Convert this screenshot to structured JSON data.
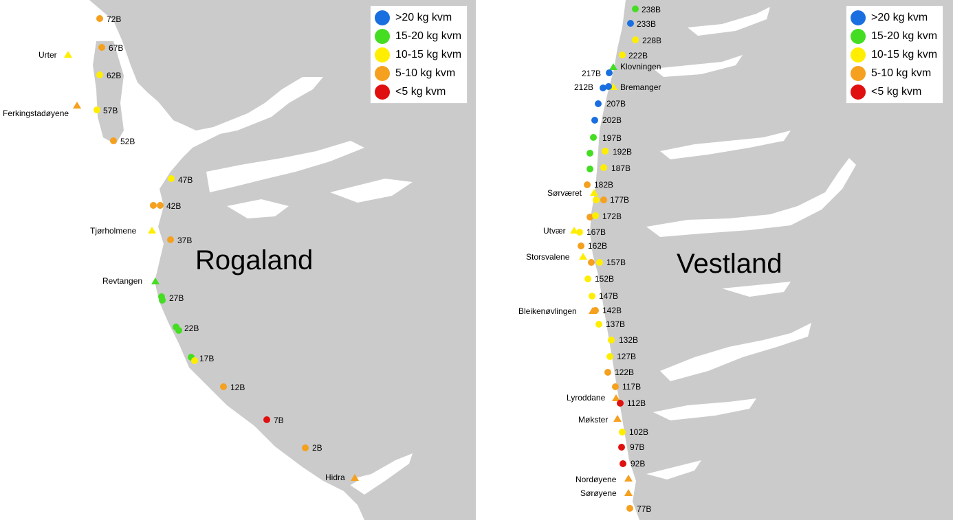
{
  "palette": {
    "sea": "#ffffff",
    "land": "#cbcbcb",
    "blue": "#1a6fe0",
    "green": "#44dd22",
    "yellow": "#ffee00",
    "orange": "#f5a01e",
    "red": "#e01010"
  },
  "legend": {
    "items": [
      {
        "label": ">20 kg kvm",
        "color": "#1a6fe0"
      },
      {
        "label": "15-20 kg kvm",
        "color": "#44dd22"
      },
      {
        "label": "10-15 kg kvm",
        "color": "#ffee00"
      },
      {
        "label": "5-10 kg kvm",
        "color": "#f5a01e"
      },
      {
        "label": "<5 kg kvm",
        "color": "#e01010"
      }
    ]
  },
  "panels": [
    {
      "region": "Rogaland",
      "stations": [
        {
          "label": "72B",
          "class": "orange"
        },
        {
          "label": "67B",
          "class": "orange"
        },
        {
          "label": "62B",
          "class": "yellow"
        },
        {
          "label": "57B",
          "class": "yellow"
        },
        {
          "label": "52B",
          "class": "orange"
        },
        {
          "label": "47B",
          "class": "yellow"
        },
        {
          "label": "42B",
          "class": "orange"
        },
        {
          "label": "37B",
          "class": "orange"
        },
        {
          "label": "27B",
          "class": "green"
        },
        {
          "label": "22B",
          "class": "green"
        },
        {
          "label": "17B",
          "class": "green"
        },
        {
          "label": "12B",
          "class": "orange"
        },
        {
          "label": "7B",
          "class": "red"
        },
        {
          "label": "2B",
          "class": "orange"
        }
      ],
      "sites": [
        {
          "label": "Urter",
          "class": "yellow"
        },
        {
          "label": "Ferkingstadøyene",
          "class": "orange"
        },
        {
          "label": "Tjørholmene",
          "class": "yellow"
        },
        {
          "label": "Revtangen",
          "class": "green"
        },
        {
          "label": "Hidra",
          "class": "orange"
        }
      ]
    },
    {
      "region": "Vestland",
      "stations": [
        {
          "label": "238B",
          "class": "green"
        },
        {
          "label": "233B",
          "class": "blue"
        },
        {
          "label": "228B",
          "class": "yellow"
        },
        {
          "label": "222B",
          "class": "yellow"
        },
        {
          "label": "217B",
          "class": "blue"
        },
        {
          "label": "212B",
          "class": "blue"
        },
        {
          "label": "207B",
          "class": "blue"
        },
        {
          "label": "202B",
          "class": "blue"
        },
        {
          "label": "197B",
          "class": "green"
        },
        {
          "label": "192B",
          "class": "yellow"
        },
        {
          "label": "187B",
          "class": "yellow"
        },
        {
          "label": "182B",
          "class": "orange"
        },
        {
          "label": "177B",
          "class": "orange"
        },
        {
          "label": "172B",
          "class": "yellow"
        },
        {
          "label": "167B",
          "class": "yellow"
        },
        {
          "label": "162B",
          "class": "orange"
        },
        {
          "label": "157B",
          "class": "yellow"
        },
        {
          "label": "152B",
          "class": "yellow"
        },
        {
          "label": "147B",
          "class": "yellow"
        },
        {
          "label": "142B",
          "class": "orange"
        },
        {
          "label": "137B",
          "class": "yellow"
        },
        {
          "label": "132B",
          "class": "yellow"
        },
        {
          "label": "127B",
          "class": "yellow"
        },
        {
          "label": "122B",
          "class": "orange"
        },
        {
          "label": "117B",
          "class": "orange"
        },
        {
          "label": "112B",
          "class": "red"
        },
        {
          "label": "102B",
          "class": "yellow"
        },
        {
          "label": "97B",
          "class": "red"
        },
        {
          "label": "92B",
          "class": "red"
        },
        {
          "label": "77B",
          "class": "orange"
        }
      ],
      "sites": [
        {
          "label": "Klovningen",
          "class": "green"
        },
        {
          "label": "Bremanger",
          "class": "yellow"
        },
        {
          "label": "Sørværet",
          "class": "yellow"
        },
        {
          "label": "Utvær",
          "class": "yellow"
        },
        {
          "label": "Storsvalene",
          "class": "yellow"
        },
        {
          "label": "Bleikenøvlingen",
          "class": "orange"
        },
        {
          "label": "Lyroddane",
          "class": "orange"
        },
        {
          "label": "Møkster",
          "class": "orange"
        },
        {
          "label": "Nordøyene",
          "class": "orange"
        },
        {
          "label": "Sørøyene",
          "class": "orange"
        }
      ]
    }
  ]
}
